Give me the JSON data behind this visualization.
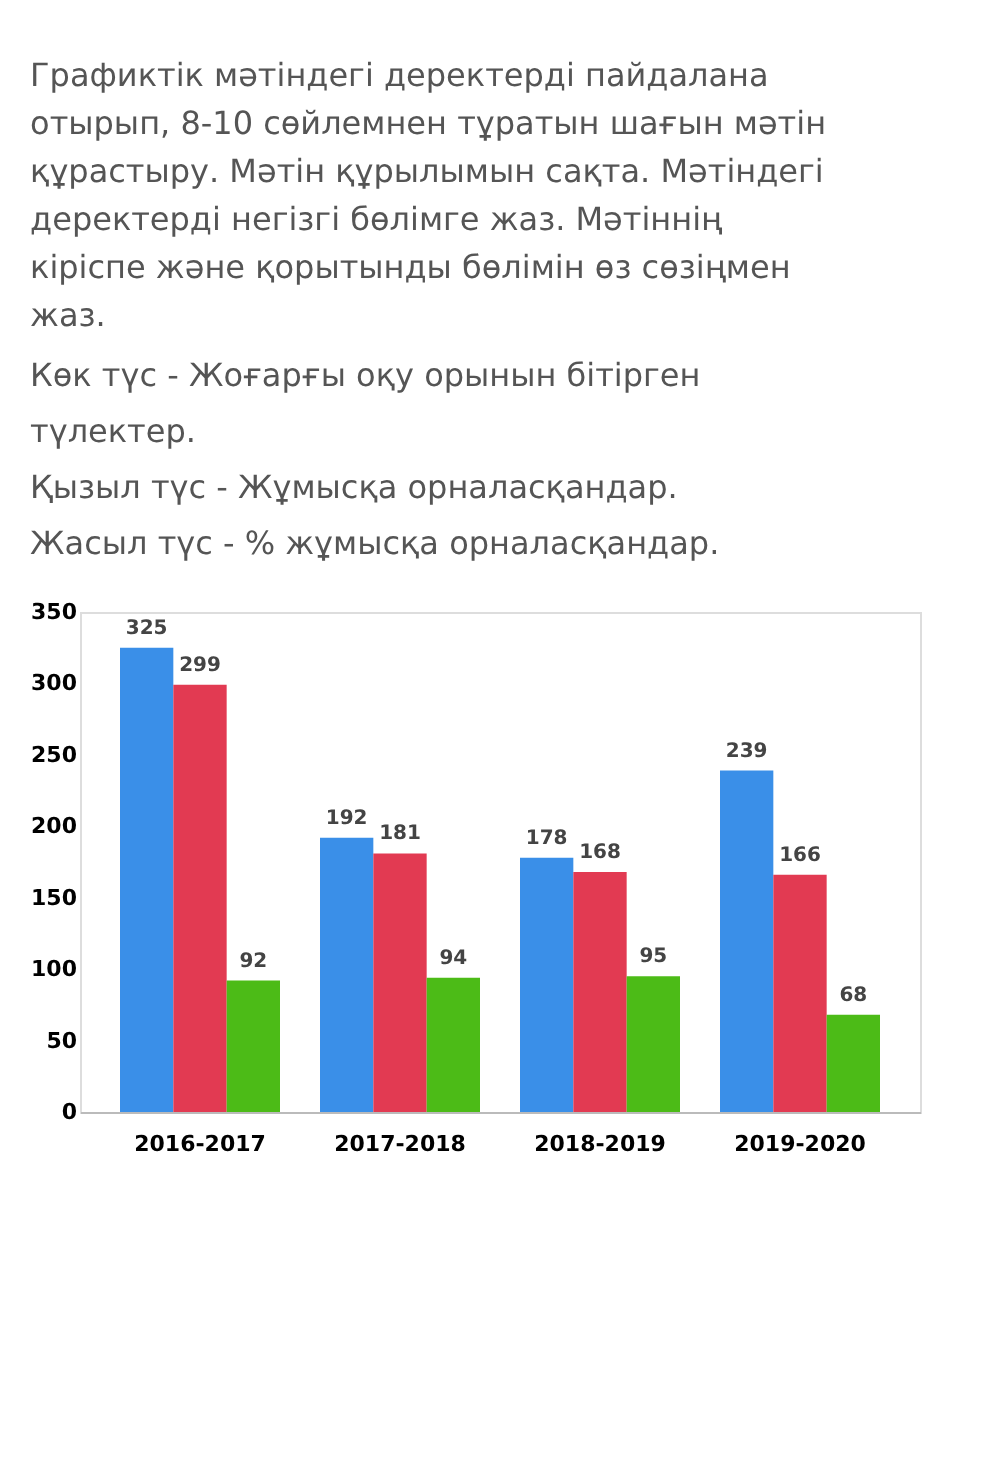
{
  "chart_data": {
    "type": "bar",
    "title": "Графиктік мәтіндегі деректерді пайдалана отырып, 8-10 сөйлемнен тұратын шағын мәтін құрастыру. Мәтін құрылымын сақта. Мәтіндегі деректерді негізгі бөлімге жаз. Мәтіннің кіріспе және қорытынды бөлімін өз сөзіңмен жаз.",
    "annotations": [
      "Көк түс - Жоғарғы оқу орынын бітірген түлектер.",
      "Қызыл түс - Жұмысқа орналасқандар.",
      "Жасыл түс - % жұмысқа орналасқандар."
    ],
    "categories": [
      "2016-2017",
      "2017-2018",
      "2018-2019",
      "2019-2020"
    ],
    "series": [
      {
        "color": "#3a8fe8",
        "values": [
          325,
          192,
          178,
          239
        ]
      },
      {
        "color": "#e23a52",
        "values": [
          299,
          181,
          168,
          166
        ]
      },
      {
        "color": "#4cbb17",
        "values": [
          92,
          94,
          95,
          68
        ]
      }
    ],
    "ylim": [
      0,
      350
    ],
    "yticks": [
      0,
      50,
      100,
      150,
      200,
      250,
      300,
      350
    ],
    "data_labels": true,
    "grid": false,
    "legend": false
  }
}
